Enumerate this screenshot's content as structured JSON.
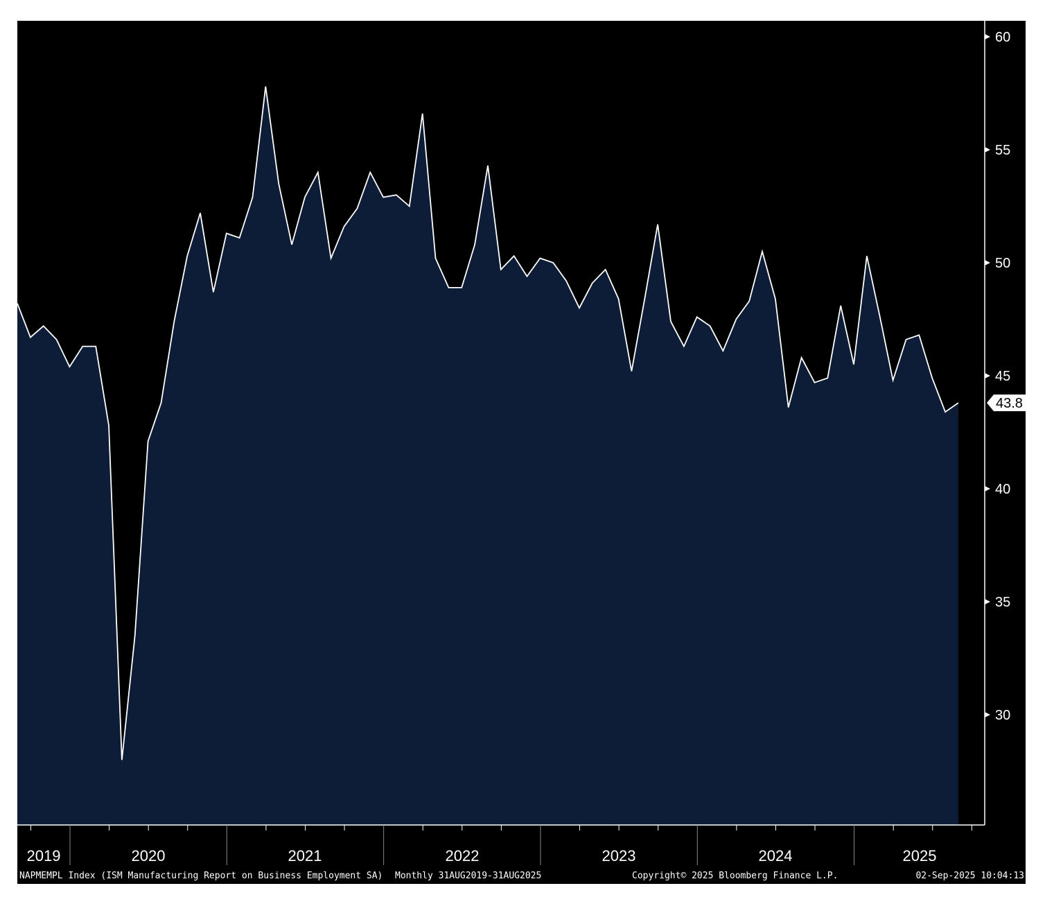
{
  "chart_data": {
    "type": "area",
    "title": "NAPMEMPL Index (ISM Manufacturing Report on Business Employment SA)",
    "frequency": "Monthly",
    "range_label": "Monthly 31AUG2019-31AUG2025",
    "x_start": "2019-08",
    "x_end": "2025-08",
    "year_labels": [
      "2019",
      "2020",
      "2021",
      "2022",
      "2023",
      "2024",
      "2025"
    ],
    "yticks": [
      30,
      35,
      40,
      45,
      50,
      55,
      60
    ],
    "ylim": [
      25.1,
      60.7
    ],
    "grid": false,
    "values": [
      48.2,
      46.7,
      47.2,
      46.6,
      45.4,
      46.3,
      46.3,
      42.8,
      28.0,
      33.5,
      42.1,
      43.8,
      47.4,
      50.3,
      52.2,
      48.7,
      51.3,
      51.1,
      52.9,
      57.8,
      53.5,
      50.8,
      52.9,
      54.0,
      50.2,
      51.6,
      52.4,
      54.0,
      52.9,
      53.0,
      52.5,
      56.6,
      50.2,
      48.9,
      48.9,
      50.8,
      54.3,
      49.7,
      50.3,
      49.4,
      50.2,
      50.0,
      49.2,
      48.0,
      49.1,
      49.7,
      48.4,
      45.2,
      48.4,
      51.7,
      47.4,
      46.3,
      47.6,
      47.2,
      46.1,
      47.5,
      48.3,
      50.5,
      48.4,
      43.6,
      45.8,
      44.7,
      44.9,
      48.1,
      45.5,
      50.3,
      47.6,
      44.8,
      46.6,
      46.8,
      44.9,
      43.4,
      43.8
    ],
    "last_value_label": "43.8",
    "colors": {
      "background": "#000000",
      "fill": "#0d1d38",
      "line": "#ffffff"
    }
  },
  "footer": {
    "series": "NAPMEMPL Index (ISM Manufacturing Report on Business Employment SA)",
    "range": "Monthly 31AUG2019-31AUG2025",
    "copyright": "Copyright© 2025 Bloomberg Finance L.P.",
    "timestamp": "02-Sep-2025 10:04:13"
  }
}
